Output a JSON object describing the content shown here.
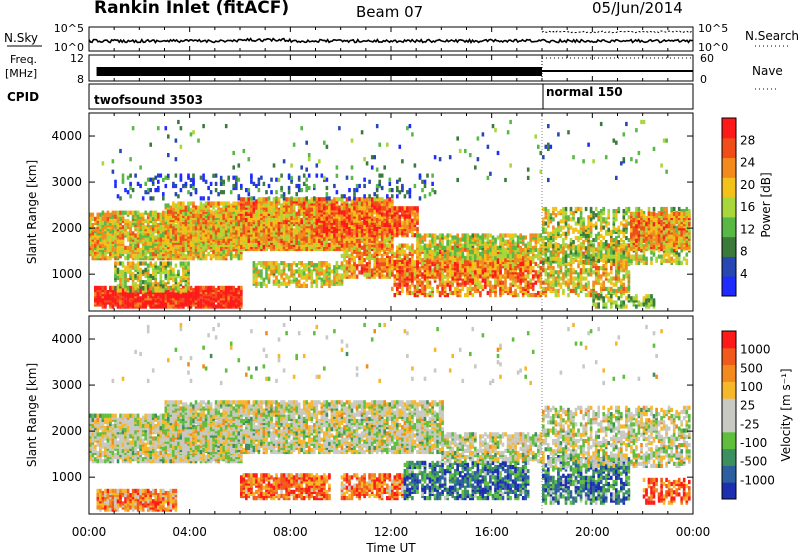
{
  "header": {
    "station": "Rankin Inlet (fitACF)",
    "beam": "Beam 07",
    "date": "05/Jun/2014"
  },
  "noise_panel": {
    "left_label": "N.Sky",
    "right_label": "N.Search",
    "left_ticks": [
      "10^5",
      "10^0"
    ],
    "right_ticks": [
      "10^5",
      "10^0"
    ]
  },
  "freq_panel": {
    "left_label_1": "Freq.",
    "left_label_2": "[MHz]",
    "left_ticks": [
      "12",
      "8"
    ],
    "right_label": "Nave",
    "right_ticks": [
      "60",
      "0"
    ]
  },
  "cpid_panel": {
    "label": "CPID",
    "segments": [
      {
        "name": "twofsound 3503",
        "start_hour": 0,
        "end_hour": 18
      },
      {
        "name": "normal 150",
        "start_hour": 18,
        "end_hour": 24
      }
    ]
  },
  "power_panel": {
    "ylabel": "Slant Range [km]",
    "yticks": [
      "4000",
      "3000",
      "2000",
      "1000"
    ],
    "colorbar_title": "Power [dB]",
    "colorbar_ticks": [
      "28",
      "24",
      "20",
      "16",
      "12",
      "8",
      "4"
    ],
    "colors": [
      "#1f2bff",
      "#2747b3",
      "#3b7a3b",
      "#58b846",
      "#a8d73c",
      "#f2c21b",
      "#f28a1e",
      "#f04d1a",
      "#ff1a1a"
    ]
  },
  "velocity_panel": {
    "ylabel": "Slant Range [km]",
    "yticks": [
      "4000",
      "3000",
      "2000",
      "1000"
    ],
    "colorbar_title": "Velocity  [m s⁻¹]",
    "colorbar_ticks": [
      "1000",
      "500",
      "100",
      "25",
      "-25",
      "-100",
      "-500",
      "-1000"
    ],
    "colors": [
      "#1b2fb0",
      "#2d5fa0",
      "#3c8f5e",
      "#5fbf3d",
      "#c9c9c4",
      "#c9c9c4",
      "#f7b72a",
      "#f28a1e",
      "#f05a1a",
      "#ff1a1a"
    ]
  },
  "x_axis": {
    "ticks": [
      "00:00",
      "04:00",
      "08:00",
      "12:00",
      "16:00",
      "20:00",
      "00:00"
    ],
    "label": "Time UT"
  },
  "chart_data": [
    {
      "type": "line",
      "title": "Rankin Inlet (fitACF)",
      "xlabel": "Time UT",
      "x_range_hours": [
        0,
        24
      ],
      "series": [
        {
          "name": "N.Sky",
          "scale": "log",
          "ylim": [
            1,
            100000
          ]
        },
        {
          "name": "N.Search",
          "scale": "log",
          "ylim": [
            1,
            100000
          ]
        }
      ]
    },
    {
      "type": "line",
      "x_range_hours": [
        0,
        24
      ],
      "series": [
        {
          "name": "Freq. [MHz]",
          "ylim": [
            8,
            12
          ]
        },
        {
          "name": "Nave",
          "ylim": [
            0,
            60
          ]
        }
      ]
    },
    {
      "type": "heatmap",
      "xlabel": "Time UT",
      "ylabel": "Slant Range [km]",
      "ylim": [
        200,
        4500
      ],
      "colorbar": "Power [dB]",
      "color_scale": [
        4,
        8,
        12,
        16,
        20,
        24,
        28
      ]
    },
    {
      "type": "heatmap",
      "xlabel": "Time UT",
      "ylabel": "Slant Range [km]",
      "ylim": [
        200,
        4500
      ],
      "colorbar": "Velocity [m s^-1]",
      "color_scale": [
        -1000,
        -500,
        -100,
        -25,
        25,
        100,
        500,
        1000
      ]
    }
  ]
}
